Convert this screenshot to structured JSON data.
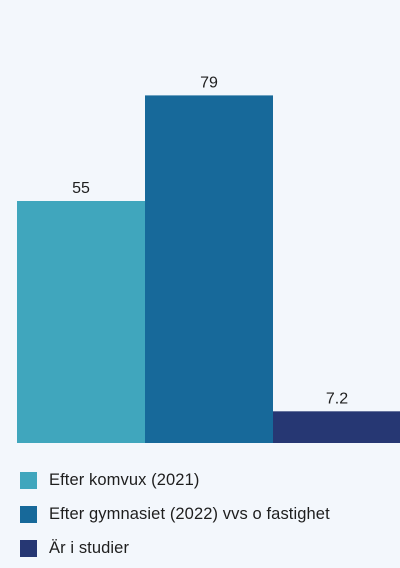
{
  "chart_data": {
    "type": "bar",
    "categories": [
      "Efter komvux (2021)",
      "Efter gymnasiet (2022) vvs o fastighet",
      "Är i studier"
    ],
    "values": [
      55,
      79,
      7.2
    ],
    "value_labels": [
      "55",
      "79",
      "7.2"
    ],
    "colors": [
      "#40a6bd",
      "#17699a",
      "#263773"
    ],
    "ylim": [
      0,
      100
    ],
    "grid": false,
    "legend_position": "bottom"
  }
}
